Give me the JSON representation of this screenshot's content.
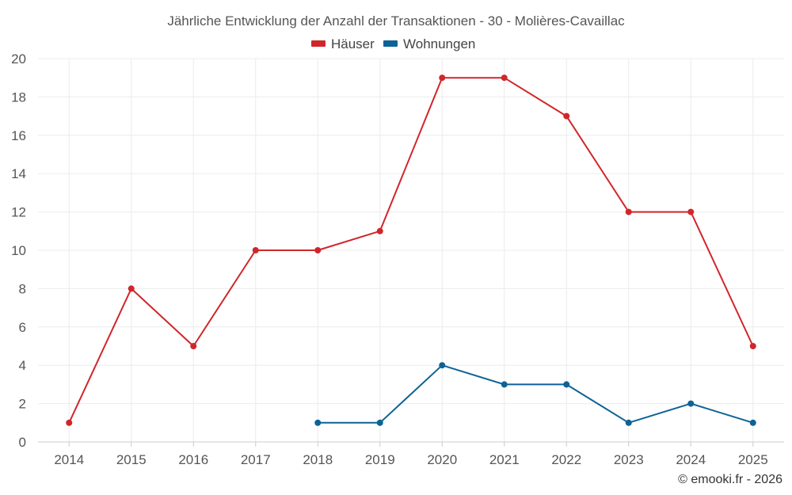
{
  "chart_data": {
    "type": "line",
    "title": "Jährliche Entwicklung der Anzahl der Transaktionen - 30 - Molières-Cavaillac",
    "categories": [
      "2014",
      "2015",
      "2016",
      "2017",
      "2018",
      "2019",
      "2020",
      "2021",
      "2022",
      "2023",
      "2024",
      "2025"
    ],
    "series": [
      {
        "name": "Häuser",
        "color": "#d0262b",
        "values": [
          1,
          8,
          5,
          10,
          10,
          11,
          19,
          19,
          17,
          12,
          12,
          5
        ]
      },
      {
        "name": "Wohnungen",
        "color": "#0e6296",
        "values": [
          null,
          null,
          null,
          null,
          1,
          1,
          4,
          3,
          3,
          1,
          2,
          1
        ]
      }
    ],
    "y_ticks": [
      "0",
      "2",
      "4",
      "6",
      "8",
      "10",
      "12",
      "14",
      "16",
      "18",
      "20"
    ],
    "ylim": [
      0,
      20
    ],
    "xlabel": "",
    "ylabel": "",
    "legend": "top-center",
    "grid": true
  },
  "credit": "© emooki.fr - 2026"
}
